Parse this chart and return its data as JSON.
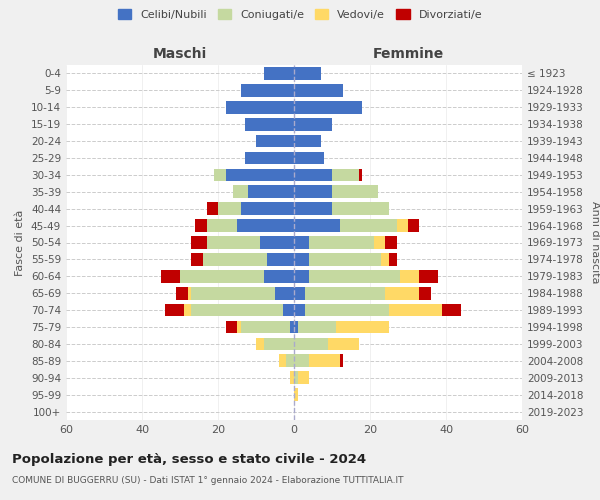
{
  "age_groups": [
    "0-4",
    "5-9",
    "10-14",
    "15-19",
    "20-24",
    "25-29",
    "30-34",
    "35-39",
    "40-44",
    "45-49",
    "50-54",
    "55-59",
    "60-64",
    "65-69",
    "70-74",
    "75-79",
    "80-84",
    "85-89",
    "90-94",
    "95-99",
    "100+"
  ],
  "birth_years": [
    "2019-2023",
    "2014-2018",
    "2009-2013",
    "2004-2008",
    "1999-2003",
    "1994-1998",
    "1989-1993",
    "1984-1988",
    "1979-1983",
    "1974-1978",
    "1969-1973",
    "1964-1968",
    "1959-1963",
    "1954-1958",
    "1949-1953",
    "1944-1948",
    "1939-1943",
    "1934-1938",
    "1929-1933",
    "1924-1928",
    "≤ 1923"
  ],
  "maschi": {
    "celibi": [
      8,
      14,
      18,
      13,
      10,
      13,
      18,
      12,
      14,
      15,
      9,
      7,
      8,
      5,
      3,
      1,
      0,
      0,
      0,
      0,
      0
    ],
    "coniugati": [
      0,
      0,
      0,
      0,
      0,
      0,
      3,
      4,
      6,
      8,
      14,
      17,
      22,
      22,
      24,
      13,
      8,
      2,
      0,
      0,
      0
    ],
    "vedovi": [
      0,
      0,
      0,
      0,
      0,
      0,
      0,
      0,
      0,
      0,
      0,
      0,
      0,
      1,
      2,
      1,
      2,
      2,
      1,
      0,
      0
    ],
    "divorziati": [
      0,
      0,
      0,
      0,
      0,
      0,
      0,
      0,
      3,
      3,
      4,
      3,
      5,
      3,
      5,
      3,
      0,
      0,
      0,
      0,
      0
    ]
  },
  "femmine": {
    "nubili": [
      7,
      13,
      18,
      10,
      7,
      8,
      10,
      10,
      10,
      12,
      4,
      4,
      4,
      3,
      3,
      1,
      0,
      0,
      0,
      0,
      0
    ],
    "coniugate": [
      0,
      0,
      0,
      0,
      0,
      0,
      7,
      12,
      15,
      15,
      17,
      19,
      24,
      21,
      22,
      10,
      9,
      4,
      1,
      0,
      0
    ],
    "vedove": [
      0,
      0,
      0,
      0,
      0,
      0,
      0,
      0,
      0,
      3,
      3,
      2,
      5,
      9,
      14,
      14,
      8,
      8,
      3,
      1,
      0
    ],
    "divorziate": [
      0,
      0,
      0,
      0,
      0,
      0,
      1,
      0,
      0,
      3,
      3,
      2,
      5,
      3,
      5,
      0,
      0,
      1,
      0,
      0,
      0
    ]
  },
  "colors": {
    "celibi": "#4472c4",
    "coniugati": "#c5d9a0",
    "vedovi": "#ffd966",
    "divorziati": "#c00000"
  },
  "xlim": 60,
  "title": "Popolazione per età, sesso e stato civile - 2024",
  "subtitle": "COMUNE DI BUGGERRU (SU) - Dati ISTAT 1° gennaio 2024 - Elaborazione TUTTITALIA.IT",
  "ylabel_left": "Fasce di età",
  "ylabel_right": "Anni di nascita",
  "xlabel_maschi": "Maschi",
  "xlabel_femmine": "Femmine",
  "legend_labels": [
    "Celibi/Nubili",
    "Coniugati/e",
    "Vedovi/e",
    "Divorziati/e"
  ],
  "bg_color": "#f0f0f0",
  "plot_bg": "#ffffff"
}
